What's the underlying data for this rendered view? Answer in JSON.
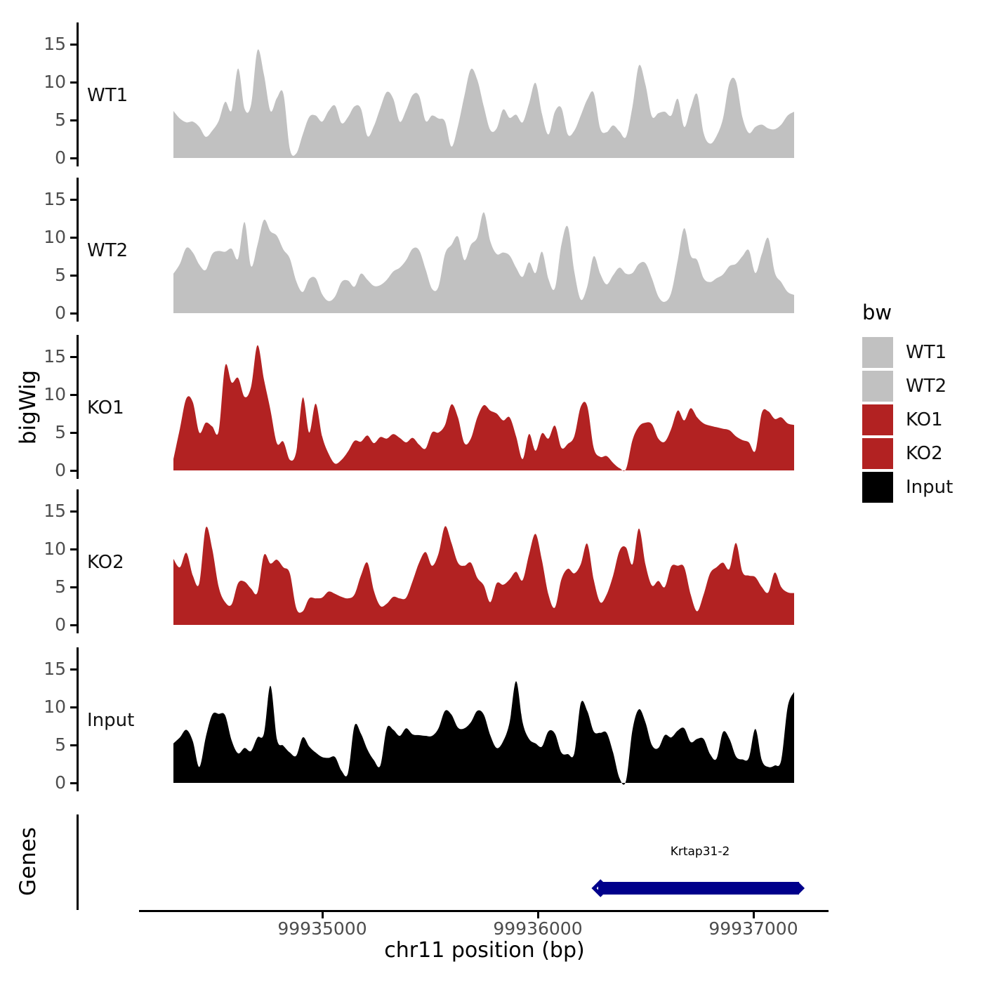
{
  "figure_titles": {
    "y_axis_title": "bigWig",
    "genes_axis_title": "Genes",
    "x_axis_title": "chr11 position (bp)"
  },
  "legend": {
    "title": "bw",
    "position": "right",
    "items": [
      {
        "label": "WT1",
        "color": "#C1C1C1"
      },
      {
        "label": "WT2",
        "color": "#C1C1C1"
      },
      {
        "label": "KO1",
        "color": "#B22222"
      },
      {
        "label": "KO2",
        "color": "#B22222"
      },
      {
        "label": "Input",
        "color": "#000000"
      }
    ]
  },
  "chart_data": {
    "type": "area",
    "title": "",
    "xlabel": "chr11 position (bp)",
    "ylabel": "bigWig",
    "grid": false,
    "x_start": 99934310,
    "x_step": 30,
    "x_end": 99937190,
    "xticks": [
      99935000,
      99936000,
      99937000
    ],
    "xtick_labels": [
      "99935000",
      "99936000",
      "99937000"
    ],
    "yticks": [
      0,
      5,
      10,
      15
    ],
    "ylim": [
      0,
      17.5
    ],
    "panels": [
      {
        "name": "WT1",
        "color": "#C1C1C1",
        "values": [
          6.2,
          5.2,
          4.7,
          4.8,
          4.1,
          2.8,
          3.6,
          4.9,
          7.4,
          6.3,
          11.8,
          6.5,
          7.0,
          14.2,
          11.0,
          6.2,
          7.9,
          8.5,
          1.2,
          0.6,
          3.1,
          5.4,
          5.6,
          4.8,
          6.2,
          6.9,
          4.6,
          5.4,
          6.8,
          6.5,
          2.9,
          4.2,
          6.6,
          8.7,
          7.8,
          4.8,
          6.3,
          8.3,
          8.2,
          4.9,
          5.6,
          5.2,
          4.8,
          1.5,
          4.2,
          8.2,
          11.7,
          10.3,
          6.8,
          3.7,
          3.9,
          6.4,
          5.3,
          5.7,
          4.7,
          7.2,
          9.9,
          5.8,
          3.1,
          6.1,
          6.6,
          3.1,
          3.6,
          5.6,
          7.7,
          8.6,
          3.9,
          3.4,
          4.3,
          3.5,
          2.8,
          6.8,
          12.2,
          9.7,
          5.5,
          5.9,
          6.1,
          5.6,
          7.8,
          4.1,
          6.6,
          8.4,
          3.3,
          1.9,
          2.9,
          5.2,
          9.9,
          10.1,
          5.4,
          3.3,
          4.1,
          4.4,
          3.9,
          3.8,
          4.4,
          5.6,
          6.1
        ]
      },
      {
        "name": "WT2",
        "color": "#C1C1C1",
        "values": [
          5.2,
          6.5,
          8.6,
          8.0,
          6.4,
          5.7,
          7.8,
          8.2,
          8.1,
          8.5,
          7.2,
          12.0,
          6.2,
          9.0,
          12.3,
          10.8,
          10.2,
          8.4,
          7.2,
          4.2,
          2.8,
          4.5,
          4.6,
          2.5,
          1.6,
          2.2,
          4.1,
          4.3,
          3.5,
          5.2,
          4.4,
          3.6,
          3.7,
          4.4,
          5.5,
          6.0,
          7.0,
          8.5,
          8.3,
          5.8,
          3.2,
          3.5,
          7.8,
          9.0,
          10.1,
          7.0,
          9.0,
          10.0,
          13.3,
          9.5,
          7.8,
          8.0,
          7.6,
          6.0,
          4.8,
          6.7,
          5.3,
          8.1,
          4.5,
          3.3,
          9.0,
          11.4,
          5.5,
          1.8,
          3.5,
          7.5,
          5.2,
          3.8,
          5.0,
          6.0,
          5.2,
          5.3,
          6.5,
          6.6,
          4.6,
          2.2,
          1.5,
          2.7,
          7.0,
          11.2,
          7.6,
          7.0,
          4.6,
          4.1,
          4.6,
          5.1,
          6.2,
          6.5,
          7.5,
          8.3,
          5.3,
          7.8,
          9.9,
          5.4,
          4.1,
          2.8,
          2.4
        ]
      },
      {
        "name": "KO1",
        "color": "#B22222",
        "values": [
          1.5,
          5.5,
          9.5,
          9.0,
          5.0,
          6.3,
          5.8,
          5.2,
          13.8,
          11.6,
          12.2,
          9.7,
          11.0,
          16.5,
          12.0,
          8.0,
          3.6,
          3.8,
          1.4,
          2.5,
          9.6,
          5.0,
          8.8,
          4.5,
          2.2,
          0.9,
          1.4,
          2.5,
          3.9,
          3.8,
          4.6,
          3.6,
          4.4,
          4.2,
          4.8,
          4.3,
          3.7,
          4.3,
          3.4,
          2.9,
          5.0,
          5.0,
          6.0,
          8.7,
          7.0,
          3.6,
          4.2,
          7.0,
          8.6,
          7.9,
          7.5,
          6.6,
          7.0,
          4.5,
          1.5,
          4.8,
          2.6,
          4.9,
          4.2,
          5.9,
          3.0,
          3.5,
          4.5,
          8.4,
          8.5,
          3.0,
          1.8,
          1.9,
          1.0,
          0.3,
          0.2,
          4.0,
          5.8,
          6.3,
          6.1,
          4.2,
          3.8,
          5.5,
          7.9,
          6.6,
          8.2,
          7.0,
          6.2,
          5.9,
          5.7,
          5.5,
          5.3,
          4.5,
          4.0,
          3.7,
          2.6,
          7.6,
          7.8,
          6.8,
          7.0,
          6.2,
          6.0
        ]
      },
      {
        "name": "KO2",
        "color": "#B22222",
        "values": [
          8.7,
          7.6,
          9.5,
          6.5,
          5.5,
          12.8,
          10.0,
          5.0,
          3.0,
          2.7,
          5.5,
          5.7,
          4.8,
          4.3,
          9.2,
          8.1,
          8.6,
          7.6,
          6.8,
          2.2,
          1.8,
          3.5,
          3.5,
          3.6,
          4.4,
          4.1,
          3.7,
          3.5,
          4.0,
          6.5,
          8.2,
          4.5,
          2.5,
          2.8,
          3.7,
          3.5,
          3.6,
          5.8,
          8.2,
          9.6,
          7.8,
          9.4,
          13.0,
          10.8,
          8.2,
          7.8,
          8.2,
          6.2,
          5.2,
          3.0,
          5.5,
          5.3,
          6.0,
          7.0,
          5.9,
          9.3,
          12.0,
          8.5,
          4.0,
          2.3,
          6.0,
          7.4,
          6.8,
          8.0,
          10.7,
          6.0,
          3.0,
          4.0,
          6.5,
          9.8,
          10.2,
          8.0,
          12.7,
          8.0,
          5.2,
          5.8,
          5.0,
          7.7,
          7.8,
          7.6,
          4.0,
          1.8,
          4.0,
          6.8,
          7.6,
          8.2,
          7.4,
          10.8,
          7.0,
          6.5,
          6.3,
          5.0,
          4.3,
          6.9,
          5.0,
          4.3,
          4.2
        ]
      },
      {
        "name": "Input",
        "color": "#000000",
        "values": [
          5.2,
          6.0,
          7.0,
          5.5,
          2.1,
          6.0,
          9.0,
          9.1,
          8.9,
          5.6,
          3.9,
          4.6,
          4.2,
          6.0,
          6.5,
          12.8,
          5.8,
          4.9,
          4.0,
          3.6,
          6.0,
          4.8,
          4.0,
          3.4,
          3.3,
          3.4,
          1.6,
          1.3,
          7.5,
          6.5,
          4.4,
          3.0,
          2.3,
          7.2,
          7.0,
          6.2,
          7.2,
          6.4,
          6.3,
          6.2,
          6.2,
          7.2,
          9.5,
          9.0,
          7.3,
          7.2,
          8.0,
          9.5,
          9.0,
          6.3,
          4.6,
          5.5,
          8.0,
          13.4,
          8.0,
          5.8,
          5.2,
          4.8,
          6.8,
          6.5,
          4.0,
          3.8,
          3.9,
          10.5,
          9.5,
          6.8,
          6.6,
          6.6,
          4.0,
          0.6,
          0.3,
          7.0,
          9.7,
          8.0,
          5.0,
          4.6,
          6.3,
          6.0,
          6.9,
          7.2,
          5.4,
          5.8,
          5.8,
          3.8,
          3.2,
          6.7,
          5.8,
          3.5,
          3.1,
          3.3,
          7.1,
          3.0,
          2.1,
          2.3,
          3.0,
          10.0,
          12.0
        ]
      }
    ],
    "gene_track": {
      "label": "Genes",
      "genes": [
        {
          "name": "Krtap31-2",
          "start": 99936280,
          "end": 99937230,
          "strand": "-",
          "color": "#00008B"
        }
      ]
    }
  }
}
